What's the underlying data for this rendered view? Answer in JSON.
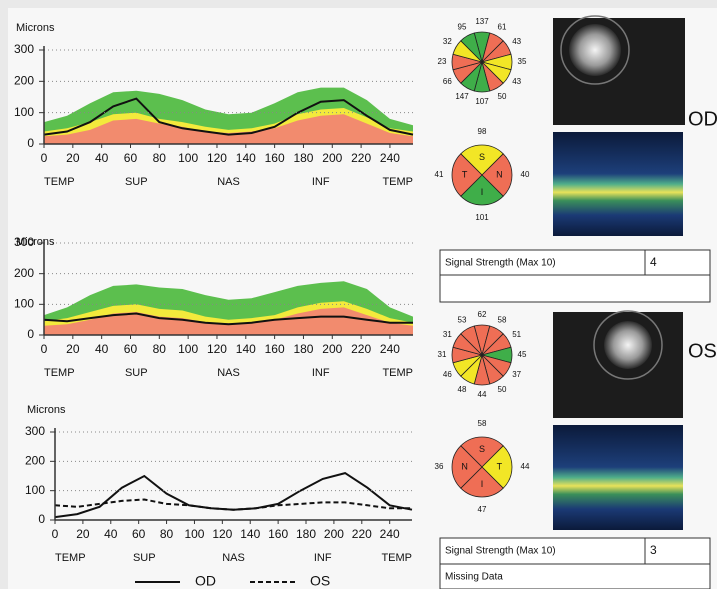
{
  "chart_data": [
    {
      "type": "band",
      "ylabel": "Microns",
      "x": [
        0,
        16,
        32,
        48,
        64,
        80,
        96,
        112,
        128,
        144,
        160,
        176,
        192,
        208,
        224,
        240,
        256
      ],
      "xlim": [
        0,
        256
      ],
      "xticks": [
        0,
        20,
        40,
        60,
        80,
        100,
        120,
        140,
        160,
        180,
        200,
        220,
        240
      ],
      "x2ticks": [
        {
          "value": 0,
          "label": "TEMP"
        },
        {
          "value": 64,
          "label": "SUP"
        },
        {
          "value": 128,
          "label": "NAS"
        },
        {
          "value": 192,
          "label": "INF"
        },
        {
          "value": 256,
          "label": "TEMP"
        }
      ],
      "ylim": [
        0,
        300
      ],
      "yticks": [
        0,
        100,
        200,
        300
      ],
      "grid": true,
      "series": [
        {
          "color": "#5cbf4e",
          "fill": true,
          "values": [
            70,
            90,
            130,
            165,
            170,
            160,
            140,
            110,
            95,
            100,
            130,
            165,
            180,
            180,
            140,
            80,
            60
          ]
        },
        {
          "color": "#f3ea3c",
          "fill": true,
          "values": [
            40,
            50,
            70,
            95,
            100,
            80,
            70,
            55,
            45,
            50,
            65,
            95,
            110,
            115,
            85,
            50,
            40
          ]
        },
        {
          "color": "#f28b6e",
          "fill": true,
          "values": [
            25,
            30,
            45,
            75,
            80,
            65,
            55,
            40,
            35,
            40,
            50,
            75,
            90,
            95,
            65,
            35,
            25
          ]
        },
        {
          "color": "#111111",
          "fill": false,
          "values": [
            30,
            40,
            70,
            120,
            145,
            70,
            50,
            40,
            30,
            35,
            55,
            100,
            135,
            140,
            90,
            45,
            30
          ]
        }
      ]
    },
    {
      "type": "band",
      "ylabel": "Microns",
      "x": [
        0,
        16,
        32,
        48,
        64,
        80,
        96,
        112,
        128,
        144,
        160,
        176,
        192,
        208,
        224,
        240,
        256
      ],
      "xlim": [
        0,
        256
      ],
      "xticks": [
        0,
        20,
        40,
        60,
        80,
        100,
        120,
        140,
        160,
        180,
        200,
        220,
        240
      ],
      "x2ticks": [
        {
          "value": 0,
          "label": "TEMP"
        },
        {
          "value": 64,
          "label": "SUP"
        },
        {
          "value": 128,
          "label": "NAS"
        },
        {
          "value": 192,
          "label": "INF"
        },
        {
          "value": 256,
          "label": "TEMP"
        }
      ],
      "ylim": [
        0,
        300
      ],
      "yticks": [
        0,
        100,
        200,
        300
      ],
      "grid": true,
      "series": [
        {
          "color": "#5cbf4e",
          "fill": true,
          "values": [
            65,
            90,
            130,
            160,
            165,
            155,
            150,
            130,
            115,
            120,
            140,
            160,
            170,
            175,
            150,
            90,
            60
          ]
        },
        {
          "color": "#f3ea3c",
          "fill": true,
          "values": [
            45,
            55,
            75,
            95,
            100,
            85,
            80,
            60,
            50,
            55,
            65,
            90,
            105,
            110,
            85,
            55,
            40
          ]
        },
        {
          "color": "#f28b6e",
          "fill": true,
          "values": [
            30,
            35,
            50,
            70,
            75,
            60,
            55,
            42,
            38,
            40,
            50,
            70,
            85,
            90,
            65,
            40,
            30
          ]
        },
        {
          "color": "#111111",
          "fill": false,
          "values": [
            50,
            45,
            55,
            65,
            70,
            55,
            50,
            40,
            35,
            40,
            50,
            55,
            60,
            60,
            50,
            40,
            40
          ]
        }
      ]
    },
    {
      "type": "line",
      "ylabel": "Microns",
      "x": [
        0,
        16,
        32,
        48,
        64,
        80,
        96,
        112,
        128,
        144,
        160,
        176,
        192,
        208,
        224,
        240,
        256
      ],
      "xlim": [
        0,
        256
      ],
      "xticks": [
        0,
        20,
        40,
        60,
        80,
        100,
        120,
        140,
        160,
        180,
        200,
        220,
        240
      ],
      "x2ticks": [
        {
          "value": 0,
          "label": "TEMP"
        },
        {
          "value": 64,
          "label": "SUP"
        },
        {
          "value": 128,
          "label": "NAS"
        },
        {
          "value": 192,
          "label": "INF"
        },
        {
          "value": 256,
          "label": "TEMP"
        }
      ],
      "ylim": [
        0,
        300
      ],
      "yticks": [
        0,
        100,
        200,
        300
      ],
      "grid": true,
      "legend": "bottom",
      "series": [
        {
          "name": "OD",
          "color": "#111111",
          "dash": false,
          "values": [
            10,
            20,
            45,
            110,
            150,
            90,
            50,
            40,
            35,
            40,
            55,
            100,
            140,
            160,
            110,
            50,
            35
          ]
        },
        {
          "name": "OS",
          "color": "#111111",
          "dash": true,
          "values": [
            50,
            45,
            55,
            65,
            70,
            55,
            50,
            40,
            35,
            40,
            50,
            55,
            60,
            60,
            50,
            40,
            40
          ]
        }
      ]
    },
    {
      "type": "clock",
      "values": [
        137,
        61,
        43,
        35,
        43,
        50,
        107,
        147,
        66,
        23,
        32,
        95
      ],
      "colors": [
        "#3fae49",
        "#ef6e55",
        "#ef6e55",
        "#f2e626",
        "#f2e626",
        "#ef6e55",
        "#3fae49",
        "#3fae49",
        "#ef6e55",
        "#ef6e55",
        "#f2e626",
        "#3fae49"
      ]
    },
    {
      "type": "quadrant",
      "categories": [
        "S",
        "N",
        "I",
        "T"
      ],
      "values": [
        98,
        40,
        101,
        41
      ],
      "colors": [
        "#f2e626",
        "#ef6e55",
        "#3fae49",
        "#ef6e55"
      ]
    },
    {
      "type": "clock",
      "values": [
        62,
        58,
        51,
        45,
        37,
        50,
        44,
        48,
        46,
        31,
        31,
        53
      ],
      "colors": [
        "#ef6e55",
        "#ef6e55",
        "#ef6e55",
        "#3fae49",
        "#ef6e55",
        "#ef6e55",
        "#ef6e55",
        "#f2e626",
        "#f2e626",
        "#ef6e55",
        "#ef6e55",
        "#ef6e55"
      ]
    },
    {
      "type": "quadrant",
      "categories": [
        "S",
        "T",
        "I",
        "N"
      ],
      "values": [
        58,
        44,
        47,
        36
      ],
      "colors": [
        "#ef6e55",
        "#f2e626",
        "#ef6e55",
        "#ef6e55"
      ]
    }
  ],
  "od_panel": {
    "eye": "OD",
    "signal_strength": {
      "label": "Signal Strength (Max 10)",
      "value": 4
    }
  },
  "os_panel": {
    "eye": "OS",
    "signal_strength": {
      "label": "Signal Strength (Max 10)",
      "value": 3
    },
    "note": "Missing Data"
  }
}
